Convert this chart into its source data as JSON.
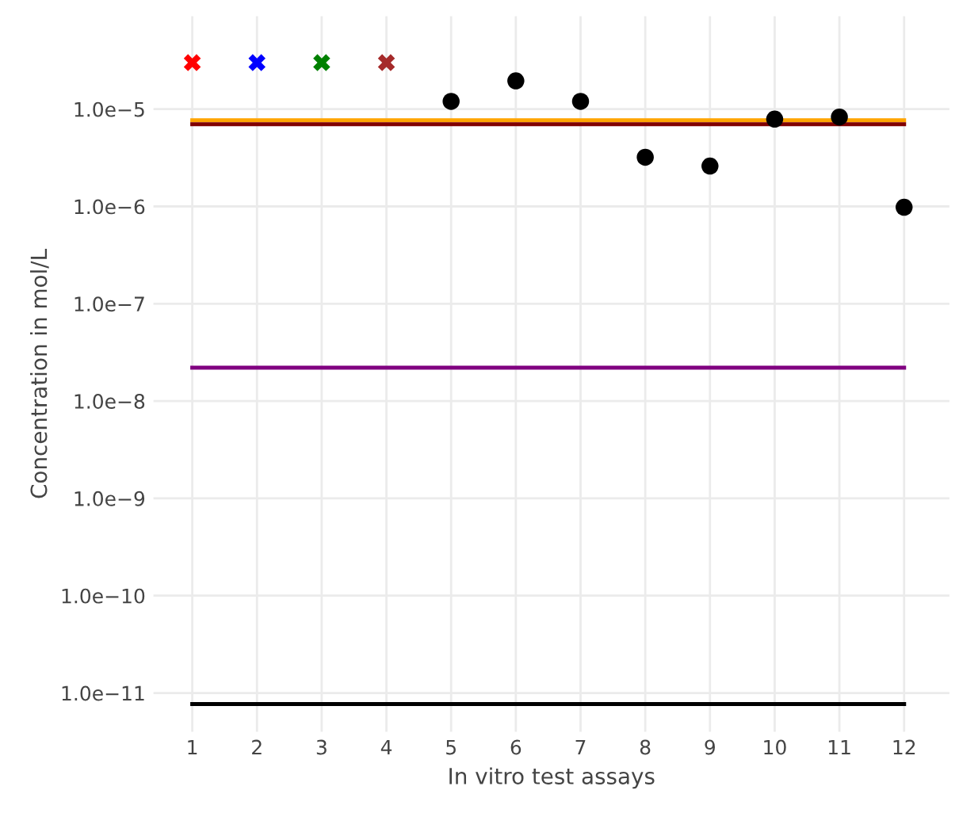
{
  "chart_data": {
    "type": "scatter",
    "xlabel": "In vitro test assays",
    "ylabel": "Concentration in mol/L",
    "log": "y",
    "grid": true,
    "legend": false,
    "xlim": [
      0.4,
      12.7
    ],
    "xticks": [
      1,
      2,
      3,
      4,
      5,
      6,
      7,
      8,
      9,
      10,
      11,
      12
    ],
    "ylim": [
      4e-12,
      9e-05
    ],
    "yticks": [
      {
        "value": 1e-11,
        "label": "1.0e−11"
      },
      {
        "value": 1e-10,
        "label": "1.0e−10"
      },
      {
        "value": 1e-09,
        "label": "1.0e−9"
      },
      {
        "value": 1e-08,
        "label": "1.0e−8"
      },
      {
        "value": 1e-07,
        "label": "1.0e−7"
      },
      {
        "value": 1e-06,
        "label": "1.0e−6"
      },
      {
        "value": 1e-05,
        "label": "1.0e−5"
      }
    ],
    "series": [
      {
        "marker": "cross",
        "x": [
          1,
          2,
          3,
          4
        ],
        "values": [
          3e-05,
          3e-05,
          3e-05,
          3e-05
        ],
        "colors": [
          "#ff0000",
          "#0000ff",
          "#008000",
          "#a52a2a"
        ]
      },
      {
        "type": "line",
        "marker": "none",
        "color": "#ffa500",
        "x": [
          1,
          12
        ],
        "values": [
          7.7e-06,
          7.7e-06
        ]
      },
      {
        "type": "line",
        "marker": "none",
        "color": "#800000",
        "x": [
          1,
          12
        ],
        "values": [
          7e-06,
          7e-06
        ]
      },
      {
        "type": "line",
        "marker": "none",
        "color": "#800080",
        "x": [
          1,
          12
        ],
        "values": [
          2.2e-08,
          2.2e-08
        ]
      },
      {
        "type": "line",
        "marker": "none",
        "color": "#000000",
        "x": [
          1,
          12
        ],
        "values": [
          7.7e-12,
          7.7e-12
        ]
      },
      {
        "marker": "circle",
        "color": "#000000",
        "x": [
          5,
          6,
          7,
          8,
          9,
          10,
          11,
          12
        ],
        "values": [
          1.2e-05,
          1.95e-05,
          1.2e-05,
          3.2e-06,
          2.6e-06,
          7.9e-06,
          8.3e-06,
          9.8e-07
        ]
      }
    ]
  }
}
